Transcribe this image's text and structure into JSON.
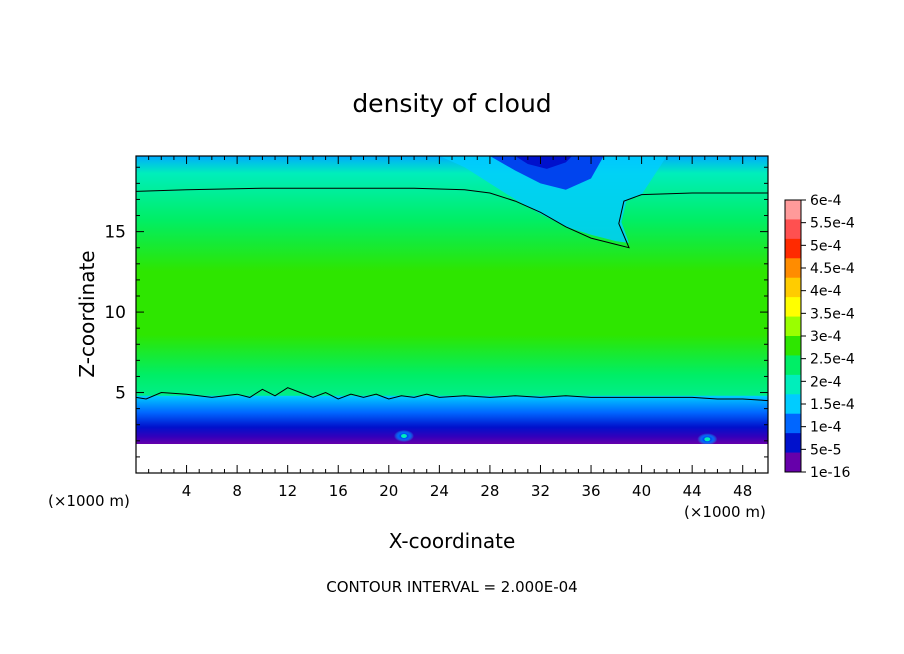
{
  "chart_data": {
    "type": "heatmap",
    "title": "density of cloud",
    "xlabel": "X-coordinate",
    "ylabel": "Z-coordinate",
    "x_unit_left": "(×1000 m)",
    "x_unit_right": "(×1000 m)",
    "footer": "CONTOUR INTERVAL = 2.000E-04",
    "xlim": [
      0,
      50
    ],
    "ylim": [
      0,
      19.7
    ],
    "x_ticks": [
      4,
      8,
      12,
      16,
      20,
      24,
      28,
      32,
      36,
      40,
      44,
      48
    ],
    "y_ticks": [
      5,
      10,
      15
    ],
    "colorbar": {
      "labels": [
        "6e-4",
        "5.5e-4",
        "5e-4",
        "4.5e-4",
        "4e-4",
        "3.5e-4",
        "3e-4",
        "2.5e-4",
        "2e-4",
        "1.5e-4",
        "1e-4",
        "5e-5",
        "1e-16"
      ],
      "colors": [
        "#ff9a9a",
        "#ff5050",
        "#ff2a00",
        "#ff8c00",
        "#ffcc00",
        "#ffff00",
        "#9aff00",
        "#2ee600",
        "#00ee66",
        "#00eebb",
        "#00ccff",
        "#0066ff",
        "#0011cc",
        "#6600aa"
      ]
    },
    "contour_level": 0.0002,
    "contour_lines": [
      {
        "x": [
          0,
          4,
          10,
          16,
          22,
          26,
          28,
          30,
          32,
          34,
          36,
          38,
          39,
          38.2,
          38.6,
          40,
          44,
          50
        ],
        "z": [
          17.5,
          17.6,
          17.7,
          17.7,
          17.7,
          17.6,
          17.4,
          16.9,
          16.2,
          15.3,
          14.6,
          14.2,
          14.0,
          15.5,
          16.9,
          17.3,
          17.4,
          17.4
        ]
      },
      {
        "x": [
          0,
          0.8,
          2,
          4,
          6,
          8,
          9,
          10,
          11,
          12,
          13,
          14,
          15,
          16,
          17,
          18,
          19,
          20,
          21,
          22,
          23,
          24,
          26,
          28,
          30,
          32,
          34,
          36,
          38,
          40,
          42,
          44,
          46,
          48,
          50
        ],
        "z": [
          4.7,
          4.6,
          5.0,
          4.9,
          4.7,
          4.9,
          4.7,
          5.2,
          4.8,
          5.3,
          5.0,
          4.7,
          5.0,
          4.6,
          4.9,
          4.7,
          4.9,
          4.6,
          4.8,
          4.7,
          4.9,
          4.7,
          4.8,
          4.7,
          4.8,
          4.7,
          4.8,
          4.7,
          4.7,
          4.7,
          4.7,
          4.7,
          4.6,
          4.6,
          4.5
        ]
      }
    ]
  }
}
